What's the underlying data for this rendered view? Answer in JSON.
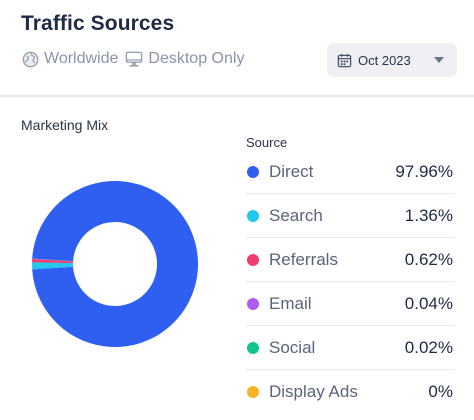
{
  "header": {
    "title": "Traffic Sources",
    "filters": [
      {
        "icon": "globe-icon",
        "label": "Worldwide"
      },
      {
        "icon": "desktop-icon",
        "label": "Desktop Only"
      }
    ],
    "date": {
      "icon": "calendar-icon",
      "label": "Oct 2023"
    }
  },
  "section": {
    "title": "Marketing Mix",
    "legend_heading": "Source"
  },
  "chart_data": {
    "type": "pie",
    "title": "Marketing Mix",
    "donut": true,
    "categories": [
      "Direct",
      "Search",
      "Referrals",
      "Email",
      "Social",
      "Display Ads"
    ],
    "values": [
      97.96,
      1.36,
      0.62,
      0.04,
      0.02,
      0
    ],
    "labels": [
      "97.96%",
      "1.36%",
      "0.62%",
      "0.04%",
      "0.02%",
      "0%"
    ],
    "colors": [
      "#2f5ff0",
      "#23c8ee",
      "#f03a6d",
      "#b05cf2",
      "#12c48b",
      "#f7b328"
    ],
    "legend_position": "right"
  },
  "colors": {
    "title": "#1f2a44",
    "muted": "#8a94a6",
    "divider": "#e6e9ef",
    "date_button_bg": "#eef0f4"
  }
}
